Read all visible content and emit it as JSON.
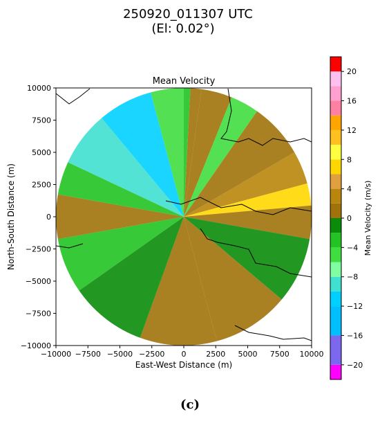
{
  "chart_data": {
    "type": "heatmap",
    "suptitle": "250920_011307 UTC",
    "suptitle2": "(El: 0.02°)",
    "title": "Mean Velocity",
    "xlabel": "East-West Distance (m)",
    "ylabel": "North-South Distance (m)",
    "xlim": [
      -10000,
      10000
    ],
    "ylim": [
      -10000,
      10000
    ],
    "xticks": [
      -10000,
      -7500,
      -5000,
      -2500,
      0,
      2500,
      5000,
      7500,
      10000
    ],
    "yticks": [
      -10000,
      -7500,
      -5000,
      -2500,
      0,
      2500,
      5000,
      7500,
      10000
    ],
    "xtick_labels": [
      "−10000",
      "−7500",
      "−5000",
      "−2500",
      "0",
      "2500",
      "5000",
      "7500",
      "10000"
    ],
    "ytick_labels": [
      "−10000",
      "−7500",
      "−5000",
      "−2500",
      "0",
      "2500",
      "5000",
      "7500",
      "10000"
    ],
    "colorbar": {
      "label": "Mean Velocity (m/s)",
      "range": [
        -22,
        22
      ],
      "ticks": [
        -20,
        -16,
        -12,
        -8,
        -4,
        0,
        4,
        8,
        12,
        16,
        20
      ],
      "tick_labels": [
        "−20",
        "−16",
        "−12",
        "−8",
        "−4",
        "0",
        "4",
        "8",
        "12",
        "16",
        "20"
      ],
      "bands": [
        {
          "from": -22,
          "to": -20,
          "color": "#ff00ff"
        },
        {
          "from": -20,
          "to": -16,
          "color": "#7b68ee"
        },
        {
          "from": -16,
          "to": -12,
          "color": "#00bfff"
        },
        {
          "from": -12,
          "to": -10,
          "color": "#00d0ff"
        },
        {
          "from": -10,
          "to": -8,
          "color": "#40e0d0"
        },
        {
          "from": -8,
          "to": -6,
          "color": "#7fffa0"
        },
        {
          "from": -6,
          "to": -4,
          "color": "#40dd40"
        },
        {
          "from": -4,
          "to": -2,
          "color": "#22c322"
        },
        {
          "from": -2,
          "to": 0,
          "color": "#0a8c0a"
        },
        {
          "from": 0,
          "to": 2,
          "color": "#a0720a"
        },
        {
          "from": 2,
          "to": 4,
          "color": "#b8860b"
        },
        {
          "from": 4,
          "to": 6,
          "color": "#e0a040"
        },
        {
          "from": 6,
          "to": 8,
          "color": "#ffd700"
        },
        {
          "from": 8,
          "to": 10,
          "color": "#ffff40"
        },
        {
          "from": 10,
          "to": 12,
          "color": "#ffc020"
        },
        {
          "from": 12,
          "to": 14,
          "color": "#ffa500"
        },
        {
          "from": 14,
          "to": 16,
          "color": "#ff80a0"
        },
        {
          "from": 16,
          "to": 18,
          "color": "#ffa0d0"
        },
        {
          "from": 18,
          "to": 20,
          "color": "#ffc0f0"
        },
        {
          "from": 20,
          "to": 22,
          "color": "#ff0000"
        }
      ]
    },
    "radar": {
      "max_range_m": 10000,
      "sectors": [
        {
          "az_from": 0,
          "az_to": 3,
          "value": -3
        },
        {
          "az_from": 3,
          "az_to": 8,
          "value": 0
        },
        {
          "az_from": 8,
          "az_to": 22,
          "value": 1
        },
        {
          "az_from": 22,
          "az_to": 35,
          "value": -5
        },
        {
          "az_from": 35,
          "az_to": 60,
          "value": 1
        },
        {
          "az_from": 60,
          "az_to": 75,
          "value": 2
        },
        {
          "az_from": 75,
          "az_to": 85,
          "value": 7
        },
        {
          "az_from": 85,
          "az_to": 100,
          "value": 1
        },
        {
          "az_from": 100,
          "az_to": 130,
          "value": -2
        },
        {
          "az_from": 130,
          "az_to": 165,
          "value": 1
        },
        {
          "az_from": 165,
          "az_to": 200,
          "value": 1
        },
        {
          "az_from": 200,
          "az_to": 235,
          "value": -2
        },
        {
          "az_from": 235,
          "az_to": 260,
          "value": -3
        },
        {
          "az_from": 260,
          "az_to": 280,
          "value": 1
        },
        {
          "az_from": 280,
          "az_to": 295,
          "value": -3
        },
        {
          "az_from": 295,
          "az_to": 320,
          "value": -9
        },
        {
          "az_from": 320,
          "az_to": 345,
          "value": -11
        },
        {
          "az_from": 345,
          "az_to": 360,
          "value": -6
        }
      ]
    }
  },
  "caption": "(c)"
}
